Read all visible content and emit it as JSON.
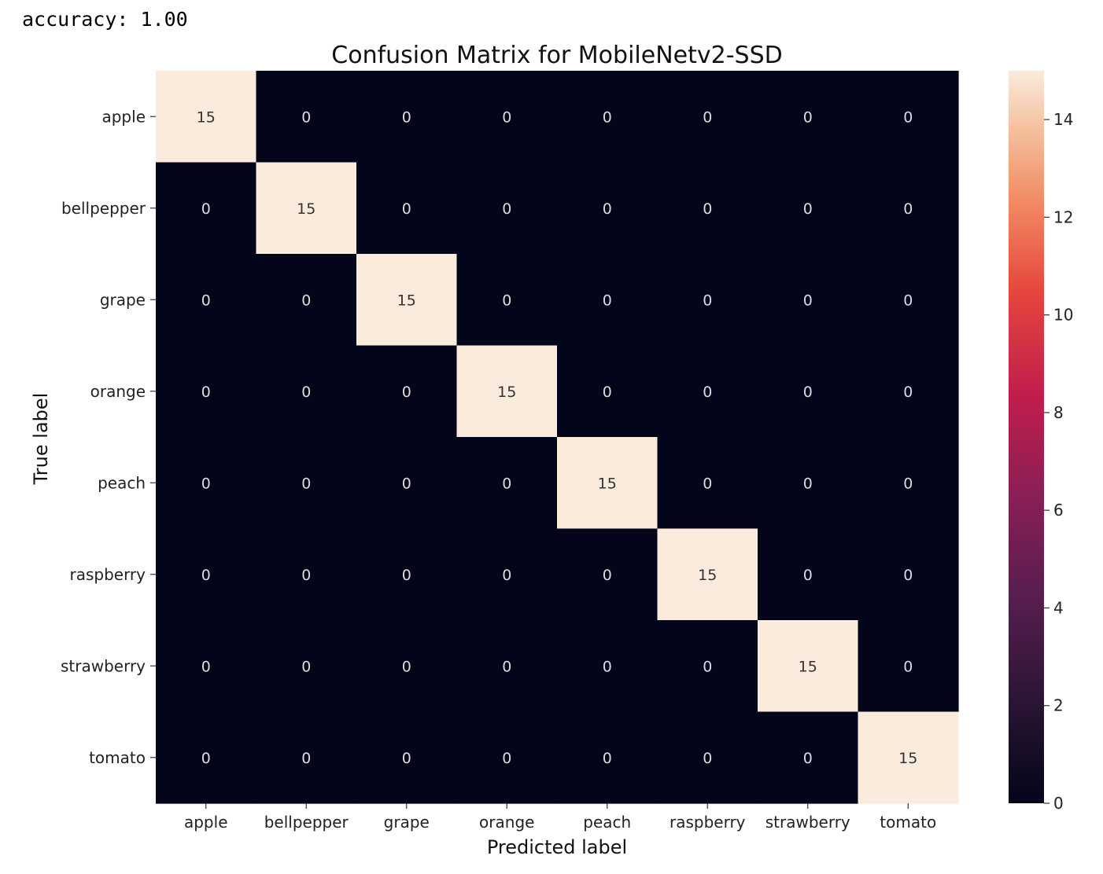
{
  "output": {
    "accuracy_label": "accuracy:",
    "accuracy_value": "1.00"
  },
  "chart_data": {
    "type": "heatmap",
    "title": "Confusion Matrix for MobileNetv2-SSD",
    "xlabel": "Predicted label",
    "ylabel": "True label",
    "x_categories": [
      "apple",
      "bellpepper",
      "grape",
      "orange",
      "peach",
      "raspberry",
      "strawberry",
      "tomato"
    ],
    "y_categories": [
      "apple",
      "bellpepper",
      "grape",
      "orange",
      "peach",
      "raspberry",
      "strawberry",
      "tomato"
    ],
    "values": [
      [
        15,
        0,
        0,
        0,
        0,
        0,
        0,
        0
      ],
      [
        0,
        15,
        0,
        0,
        0,
        0,
        0,
        0
      ],
      [
        0,
        0,
        15,
        0,
        0,
        0,
        0,
        0
      ],
      [
        0,
        0,
        0,
        15,
        0,
        0,
        0,
        0
      ],
      [
        0,
        0,
        0,
        0,
        15,
        0,
        0,
        0
      ],
      [
        0,
        0,
        0,
        0,
        0,
        15,
        0,
        0
      ],
      [
        0,
        0,
        0,
        0,
        0,
        0,
        15,
        0
      ],
      [
        0,
        0,
        0,
        0,
        0,
        0,
        0,
        15
      ]
    ],
    "annotated": true,
    "colormap": "rocket",
    "color_low": "#03051a",
    "color_high": "#faebdd",
    "vmin": 0,
    "vmax": 15,
    "colorbar": {
      "ticks": [
        0,
        2,
        4,
        6,
        8,
        10,
        12,
        14
      ]
    }
  }
}
